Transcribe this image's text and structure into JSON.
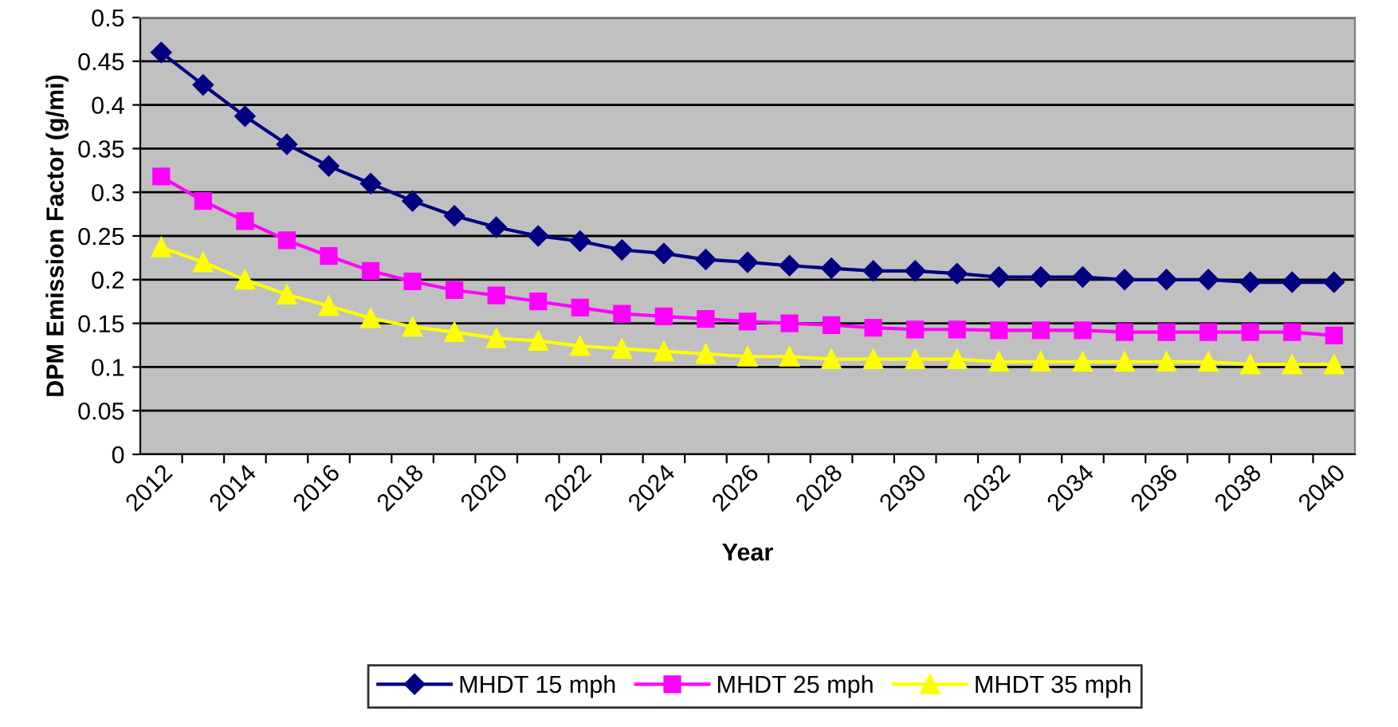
{
  "chart_data": {
    "type": "line",
    "xlabel": "Year",
    "ylabel": "DPM Emission Factor (g/mi)",
    "categories": [
      "2012",
      null,
      "2014",
      null,
      "2016",
      null,
      "2018",
      null,
      "2020",
      null,
      "2022",
      null,
      "2024",
      null,
      "2026",
      null,
      "2028",
      null,
      "2030",
      null,
      "2032",
      null,
      "2034",
      null,
      "2036",
      null,
      "2038",
      null,
      "2040"
    ],
    "series": [
      {
        "name": "MHDT 15 mph",
        "color": "#000080",
        "marker": "diamond",
        "values": [
          0.46,
          0.423,
          0.387,
          0.355,
          0.33,
          0.31,
          0.29,
          0.273,
          0.26,
          0.25,
          0.244,
          0.234,
          0.23,
          0.223,
          0.22,
          0.216,
          0.213,
          0.21,
          0.21,
          0.207,
          0.203,
          0.203,
          0.203,
          0.2,
          0.2,
          0.2,
          0.197,
          0.197,
          0.197
        ]
      },
      {
        "name": "MHDT 25 mph",
        "color": "#ff00ff",
        "marker": "square",
        "values": [
          0.318,
          0.29,
          0.267,
          0.245,
          0.227,
          0.21,
          0.198,
          0.188,
          0.182,
          0.175,
          0.168,
          0.161,
          0.158,
          0.155,
          0.152,
          0.15,
          0.148,
          0.145,
          0.143,
          0.143,
          0.142,
          0.142,
          0.142,
          0.14,
          0.14,
          0.14,
          0.14,
          0.14,
          0.136
        ]
      },
      {
        "name": "MHDT 35 mph",
        "color": "#ffff00",
        "marker": "triangle",
        "values": [
          0.237,
          0.22,
          0.2,
          0.183,
          0.17,
          0.156,
          0.146,
          0.14,
          0.133,
          0.13,
          0.124,
          0.121,
          0.118,
          0.115,
          0.112,
          0.112,
          0.109,
          0.109,
          0.109,
          0.109,
          0.106,
          0.106,
          0.106,
          0.106,
          0.106,
          0.106,
          0.103,
          0.103,
          0.103
        ]
      }
    ],
    "ylim": [
      0,
      0.5
    ],
    "yticks": [
      0,
      0.05,
      0.1,
      0.15,
      0.2,
      0.25,
      0.3,
      0.35,
      0.4,
      0.45,
      0.5
    ],
    "grid": "y",
    "legend": "bottom",
    "line_style": "solid"
  }
}
